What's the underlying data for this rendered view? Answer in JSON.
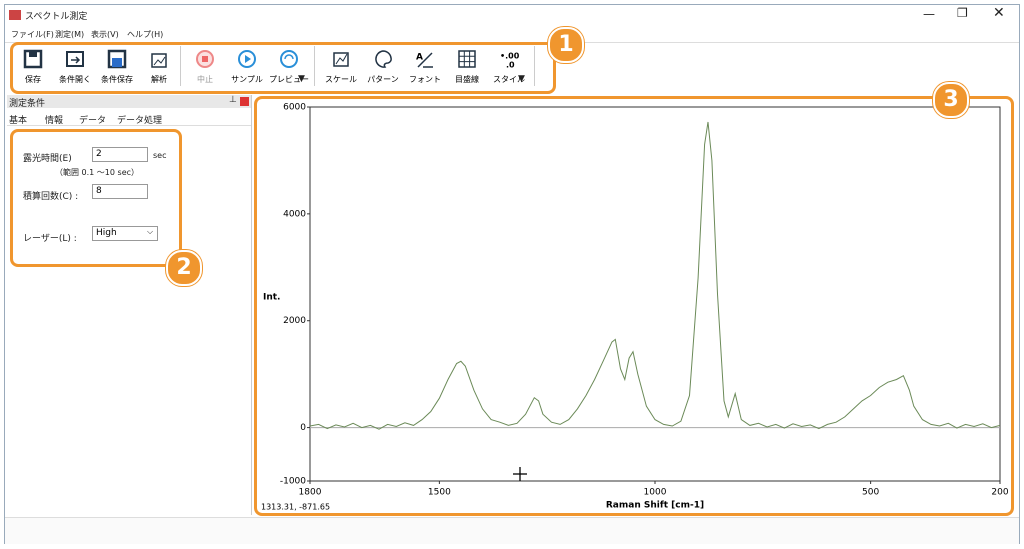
{
  "window": {
    "title": "スペクトル測定"
  },
  "menu": [
    "ファイル(F)",
    "測定(M)",
    "表示(V)",
    "ヘルプ(H)"
  ],
  "toolbar": {
    "groups": [
      [
        "保存",
        "条件開く",
        "条件保存",
        "解析"
      ],
      [
        "中止",
        "サンプル",
        "プレビュー"
      ],
      [
        "スケール",
        "パターン",
        "フォント",
        "目盛線",
        "スタイル"
      ]
    ]
  },
  "panel": {
    "title": "測定条件",
    "tabs": [
      "基本",
      "情報",
      "データ",
      "データ処理"
    ],
    "fields": {
      "exposure_label": "露光時間(E)",
      "exposure_value": "2",
      "exposure_unit": "sec",
      "exposure_range": "（範囲 0.1 ～10 sec）",
      "accum_label": "積算回数(C) :",
      "accum_value": "8",
      "laser_label": "レーザー(L) :",
      "laser_value": "High"
    }
  },
  "callouts": [
    "1",
    "2",
    "3"
  ],
  "status": {
    "cursor": "1313.31,  -871.65"
  },
  "chart_data": {
    "type": "line",
    "ylabel": "Int.",
    "xlabel": "Raman Shift [cm-1]",
    "color": "#6b8a58",
    "xlim": [
      1800,
      200
    ],
    "ylim": [
      -1000,
      6000
    ],
    "xticks": [
      1800,
      1500,
      1000,
      500,
      200
    ],
    "yticks": [
      -1000,
      0,
      2000,
      4000,
      6000
    ],
    "x": [
      1800,
      1780,
      1760,
      1740,
      1720,
      1700,
      1680,
      1660,
      1640,
      1620,
      1600,
      1580,
      1560,
      1540,
      1520,
      1500,
      1480,
      1460,
      1450,
      1440,
      1420,
      1400,
      1380,
      1360,
      1340,
      1320,
      1300,
      1280,
      1270,
      1260,
      1240,
      1220,
      1200,
      1180,
      1160,
      1140,
      1120,
      1100,
      1092,
      1080,
      1070,
      1060,
      1051,
      1040,
      1020,
      1000,
      980,
      960,
      940,
      920,
      900,
      885,
      877,
      868,
      855,
      840,
      830,
      814,
      800,
      780,
      760,
      740,
      720,
      700,
      680,
      660,
      640,
      620,
      600,
      580,
      560,
      540,
      520,
      500,
      480,
      460,
      440,
      424,
      410,
      400,
      380,
      360,
      340,
      320,
      300,
      280,
      260,
      240,
      220,
      200
    ],
    "values": [
      30,
      60,
      -20,
      50,
      10,
      80,
      0,
      40,
      -30,
      60,
      20,
      90,
      40,
      150,
      300,
      550,
      900,
      1200,
      1240,
      1150,
      700,
      350,
      150,
      100,
      40,
      80,
      250,
      560,
      500,
      250,
      100,
      60,
      150,
      350,
      600,
      900,
      1250,
      1600,
      1650,
      1100,
      900,
      1300,
      1420,
      1000,
      400,
      150,
      60,
      30,
      120,
      600,
      2800,
      5300,
      5720,
      5000,
      2500,
      500,
      200,
      635,
      150,
      40,
      80,
      10,
      60,
      -10,
      70,
      20,
      50,
      -20,
      60,
      100,
      200,
      350,
      500,
      600,
      750,
      850,
      900,
      970,
      700,
      400,
      150,
      60,
      30,
      80,
      -10,
      60,
      20,
      70,
      0,
      40
    ]
  }
}
